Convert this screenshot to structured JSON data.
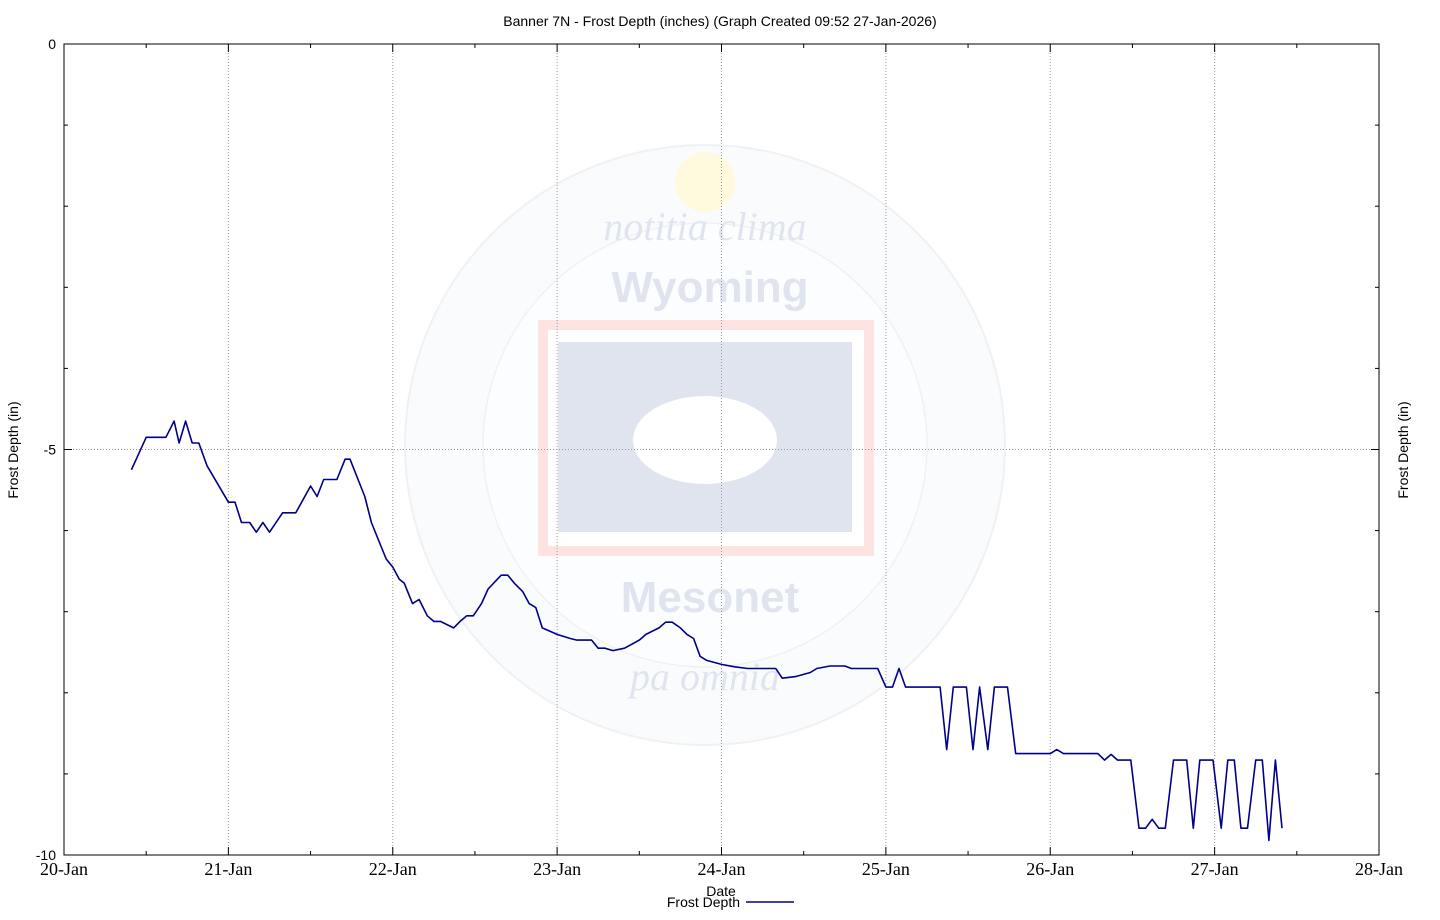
{
  "chart_data": {
    "type": "line",
    "title": "Banner 7N - Frost Depth (inches) (Graph Created 09:52 27-Jan-2026)",
    "xlabel": "Date",
    "ylabel": "Frost Depth (in)",
    "ylabel_right": "Frost Depth (in)",
    "x_ticks": [
      "20-Jan",
      "21-Jan",
      "22-Jan",
      "23-Jan",
      "24-Jan",
      "25-Jan",
      "26-Jan",
      "27-Jan",
      "28-Jan"
    ],
    "y_ticks": [
      "0",
      "-5",
      "-10"
    ],
    "y_tick_values": [
      0,
      -5,
      -10
    ],
    "ylim": [
      -10,
      0
    ],
    "x_range_days": [
      0,
      8
    ],
    "grid": true,
    "legend": "bottom-center",
    "line_color": "#00008b",
    "watermark": {
      "top_text": "notitia   clima",
      "center_top": "Wyoming",
      "center_bottom": "Mesonet",
      "bottom_text": "pa   omnia"
    },
    "series": [
      {
        "name": "Frost Depth",
        "points": [
          [
            0.41,
            -5.25
          ],
          [
            0.5,
            -4.85
          ],
          [
            0.62,
            -4.85
          ],
          [
            0.67,
            -4.65
          ],
          [
            0.7,
            -4.92
          ],
          [
            0.74,
            -4.65
          ],
          [
            0.78,
            -4.92
          ],
          [
            0.82,
            -4.92
          ],
          [
            0.87,
            -5.2
          ],
          [
            1.0,
            -5.65
          ],
          [
            1.04,
            -5.65
          ],
          [
            1.08,
            -5.9
          ],
          [
            1.13,
            -5.9
          ],
          [
            1.17,
            -6.02
          ],
          [
            1.21,
            -5.9
          ],
          [
            1.25,
            -6.02
          ],
          [
            1.33,
            -5.78
          ],
          [
            1.41,
            -5.78
          ],
          [
            1.5,
            -5.45
          ],
          [
            1.54,
            -5.58
          ],
          [
            1.58,
            -5.37
          ],
          [
            1.66,
            -5.37
          ],
          [
            1.71,
            -5.12
          ],
          [
            1.74,
            -5.12
          ],
          [
            1.83,
            -5.58
          ],
          [
            1.87,
            -5.9
          ],
          [
            1.92,
            -6.15
          ],
          [
            1.96,
            -6.35
          ],
          [
            2.0,
            -6.45
          ],
          [
            2.04,
            -6.6
          ],
          [
            2.07,
            -6.65
          ],
          [
            2.12,
            -6.9
          ],
          [
            2.16,
            -6.85
          ],
          [
            2.21,
            -7.05
          ],
          [
            2.25,
            -7.12
          ],
          [
            2.29,
            -7.12
          ],
          [
            2.37,
            -7.2
          ],
          [
            2.41,
            -7.12
          ],
          [
            2.45,
            -7.05
          ],
          [
            2.49,
            -7.05
          ],
          [
            2.54,
            -6.9
          ],
          [
            2.58,
            -6.72
          ],
          [
            2.66,
            -6.55
          ],
          [
            2.7,
            -6.55
          ],
          [
            2.74,
            -6.65
          ],
          [
            2.79,
            -6.75
          ],
          [
            2.83,
            -6.9
          ],
          [
            2.87,
            -6.95
          ],
          [
            2.91,
            -7.2
          ],
          [
            3.0,
            -7.28
          ],
          [
            3.08,
            -7.33
          ],
          [
            3.12,
            -7.35
          ],
          [
            3.21,
            -7.35
          ],
          [
            3.25,
            -7.45
          ],
          [
            3.29,
            -7.45
          ],
          [
            3.34,
            -7.48
          ],
          [
            3.41,
            -7.45
          ],
          [
            3.5,
            -7.35
          ],
          [
            3.54,
            -7.28
          ],
          [
            3.62,
            -7.2
          ],
          [
            3.66,
            -7.13
          ],
          [
            3.7,
            -7.13
          ],
          [
            3.75,
            -7.2
          ],
          [
            3.79,
            -7.28
          ],
          [
            3.83,
            -7.33
          ],
          [
            3.87,
            -7.55
          ],
          [
            3.91,
            -7.6
          ],
          [
            4.0,
            -7.65
          ],
          [
            4.08,
            -7.68
          ],
          [
            4.16,
            -7.7
          ],
          [
            4.33,
            -7.7
          ],
          [
            4.37,
            -7.82
          ],
          [
            4.45,
            -7.8
          ],
          [
            4.54,
            -7.75
          ],
          [
            4.58,
            -7.7
          ],
          [
            4.66,
            -7.67
          ],
          [
            4.75,
            -7.67
          ],
          [
            4.79,
            -7.7
          ],
          [
            4.95,
            -7.7
          ],
          [
            5.0,
            -7.93
          ],
          [
            5.04,
            -7.93
          ],
          [
            5.08,
            -7.7
          ],
          [
            5.12,
            -7.93
          ],
          [
            5.33,
            -7.93
          ],
          [
            5.37,
            -8.7
          ],
          [
            5.41,
            -7.93
          ],
          [
            5.49,
            -7.93
          ],
          [
            5.53,
            -8.7
          ],
          [
            5.57,
            -7.93
          ],
          [
            5.62,
            -8.7
          ],
          [
            5.66,
            -7.93
          ],
          [
            5.74,
            -7.93
          ],
          [
            5.79,
            -8.75
          ],
          [
            6.0,
            -8.75
          ],
          [
            6.04,
            -8.7
          ],
          [
            6.08,
            -8.75
          ],
          [
            6.29,
            -8.75
          ],
          [
            6.33,
            -8.83
          ],
          [
            6.37,
            -8.76
          ],
          [
            6.41,
            -8.83
          ],
          [
            6.49,
            -8.83
          ],
          [
            6.54,
            -9.67
          ],
          [
            6.58,
            -9.67
          ],
          [
            6.62,
            -9.56
          ],
          [
            6.66,
            -9.67
          ],
          [
            6.7,
            -9.67
          ],
          [
            6.75,
            -8.83
          ],
          [
            6.83,
            -8.83
          ],
          [
            6.87,
            -9.67
          ],
          [
            6.91,
            -8.83
          ],
          [
            6.99,
            -8.83
          ],
          [
            7.04,
            -9.67
          ],
          [
            7.08,
            -8.83
          ],
          [
            7.12,
            -8.83
          ],
          [
            7.16,
            -9.67
          ],
          [
            7.2,
            -9.67
          ],
          [
            7.25,
            -8.83
          ],
          [
            7.29,
            -8.83
          ],
          [
            7.33,
            -9.82
          ],
          [
            7.37,
            -8.83
          ],
          [
            7.41,
            -9.67
          ]
        ]
      }
    ]
  }
}
